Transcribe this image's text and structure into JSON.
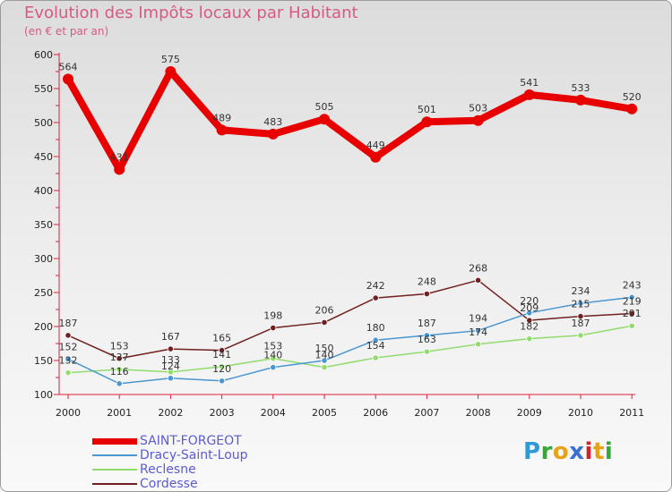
{
  "title": "Evolution des Impôts locaux par Habitant",
  "subtitle": "(en € et par an)",
  "logo": {
    "letters": [
      "P",
      "r",
      "o",
      "x",
      "i",
      "t",
      "i"
    ],
    "colors": [
      "#2f9ad6",
      "#39a53c",
      "#e8a217",
      "#3a6fd4",
      "#d2212c",
      "#e8a217",
      "#39a53c"
    ]
  },
  "chart_data": {
    "type": "line",
    "title": "Evolution des Impôts locaux par Habitant",
    "subtitle": "(en € et par an)",
    "xlabel": "",
    "ylabel": "",
    "categories": [
      "2000",
      "2001",
      "2002",
      "2003",
      "2004",
      "2005",
      "2006",
      "2007",
      "2008",
      "2009",
      "2010",
      "2011"
    ],
    "ylim": [
      100,
      600
    ],
    "yticks": [
      100,
      150,
      200,
      250,
      300,
      350,
      400,
      450,
      500,
      550,
      600
    ],
    "grid": false,
    "legend_position": "bottom-left",
    "series": [
      {
        "name": "SAINT-FORGEOT",
        "color": "#e80000",
        "values": [
          564,
          431,
          575,
          489,
          483,
          505,
          449,
          501,
          503,
          541,
          533,
          520
        ]
      },
      {
        "name": "Dracy-Saint-Loup",
        "color": "#4a97d1",
        "values": [
          152,
          116,
          124,
          120,
          140,
          150,
          180,
          187,
          194,
          220,
          234,
          243
        ]
      },
      {
        "name": "Reclesne",
        "color": "#92dc6e",
        "values": [
          132,
          137,
          133,
          141,
          153,
          140,
          154,
          163,
          174,
          182,
          187,
          201
        ]
      },
      {
        "name": "Cordesse",
        "color": "#702020",
        "values": [
          187,
          153,
          167,
          165,
          198,
          206,
          242,
          248,
          268,
          209,
          215,
          219
        ]
      }
    ]
  }
}
